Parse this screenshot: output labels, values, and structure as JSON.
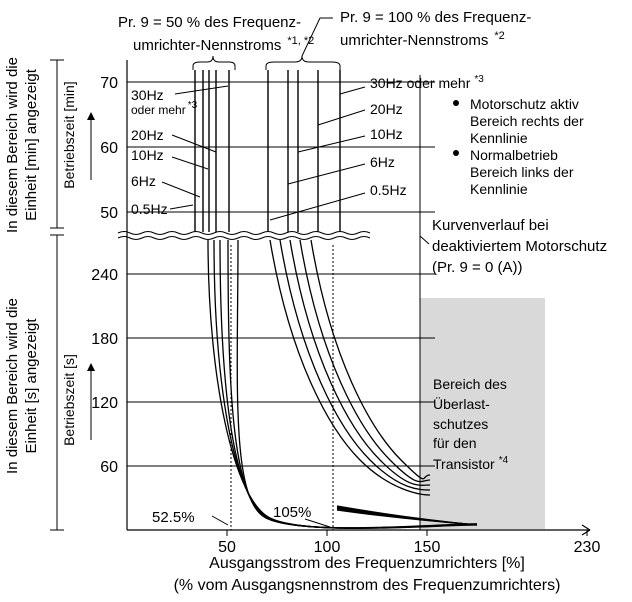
{
  "chart_data": {
    "type": "line",
    "xlabel": "Ausgangsstrom des Frequenzumrichters [%]",
    "xlabel2": "(% vom Ausgangsnennstrom des Frequenzumrichters)",
    "x_ticks": [
      "50",
      "100",
      "150",
      "230"
    ],
    "x_tick_values": [
      50,
      100,
      150,
      230
    ],
    "xlim": [
      0,
      240
    ],
    "upper_panel": {
      "ylabel": "Betriebszeit [min]",
      "side_label_1": "In diesem Bereich wird die",
      "side_label_2": "Einheit [min] angezeigt",
      "y_ticks": [
        "70",
        "60",
        "50"
      ],
      "y_tick_values": [
        70,
        60,
        50
      ],
      "ylim": [
        45,
        75
      ],
      "series_50pct": [
        {
          "name": "30Hz oder mehr",
          "x": 52.5
        },
        {
          "name": "20Hz",
          "x": 48.5
        },
        {
          "name": "10Hz",
          "x": 45
        },
        {
          "name": "6Hz",
          "x": 41
        },
        {
          "name": "0.5Hz",
          "x": 37
        }
      ],
      "series_100pct": [
        {
          "name": "30Hz oder mehr",
          "x": 118
        },
        {
          "name": "20Hz",
          "x": 105
        },
        {
          "name": "10Hz",
          "x": 91
        },
        {
          "name": "6Hz",
          "x": 81
        },
        {
          "name": "0.5Hz",
          "x": 71
        }
      ]
    },
    "lower_panel": {
      "ylabel": "Betriebszeit [s]",
      "side_label_1": "In diesem Bereich wird die",
      "side_label_2": "Einheit [s] angezeigt",
      "y_ticks": [
        "240",
        "180",
        "120",
        "60"
      ],
      "y_tick_values": [
        240,
        180,
        120,
        60
      ],
      "ylim": [
        0,
        270
      ],
      "transistor_region_x": [
        150,
        230
      ],
      "transistor_region_ymax": 218,
      "curves_50pct": [
        {
          "asym": 55,
          "y0": 240,
          "x_at_240": 55
        },
        {
          "asym": 54.5,
          "y0": 240,
          "x_at_240": 61.5
        },
        {
          "asym": 54,
          "y0": 240,
          "x_at_240": 48
        },
        {
          "asym": 53.5,
          "y0": 240,
          "x_at_240": 46
        },
        {
          "asym": 53,
          "y0": 240,
          "x_at_240": 44
        }
      ],
      "curves_100pct": [
        {
          "asym": 105,
          "x_at_240": 78
        },
        {
          "asym": 105,
          "x_at_240": 83
        },
        {
          "asym": 105,
          "x_at_240": 88
        },
        {
          "asym": 105,
          "x_at_240": 95
        },
        {
          "asym": 105,
          "x_at_240": 102
        }
      ],
      "markers": [
        {
          "label": "52.5%",
          "x": 52.5
        },
        {
          "label": "105%",
          "x": 105
        }
      ]
    },
    "annotations": {
      "top_left_1": "Pr. 9 = 50 % des Frequenz-",
      "top_left_2": "umrichter-Nennstroms",
      "top_left_sup": "*1, *2",
      "top_right_1": "Pr. 9 = 100 % des Frequenz-",
      "top_right_2": "umrichter-Nennstroms",
      "top_right_sup": "*2",
      "label_30hz_left_1": "30Hz",
      "label_30hz_left_2": "oder mehr",
      "label_30hz_left_sup": "*3",
      "label_20hz_left": "20Hz",
      "label_10hz_left": "10Hz",
      "label_6hz_left": "6Hz",
      "label_05hz_left": "0.5Hz",
      "label_30hz_right": "30Hz oder mehr",
      "label_30hz_right_sup": "*3",
      "label_20hz_right": "20Hz",
      "label_10hz_right": "10Hz",
      "label_6hz_right": "6Hz",
      "label_05hz_right": "0.5Hz",
      "bullet_1_line1": "Motorschutz aktiv",
      "bullet_1_line2": "Bereich rechts der",
      "bullet_1_line3": "Kennlinie",
      "bullet_2_line1": "Normalbetrieb",
      "bullet_2_line2": "Bereich links der",
      "bullet_2_line3": "Kennlinie",
      "kurven_1": "Kurvenverlauf bei",
      "kurven_2": "deaktiviertem Motorschutz",
      "kurven_3": "(Pr. 9 = 0 (A))",
      "transistor_1": "Bereich des",
      "transistor_2": "Überlast-",
      "transistor_3": "schutzes",
      "transistor_4": "für den",
      "transistor_5": "Transistor",
      "transistor_sup": "*4"
    },
    "colors": {
      "region": "#d9d9d9",
      "line": "#000000"
    }
  }
}
